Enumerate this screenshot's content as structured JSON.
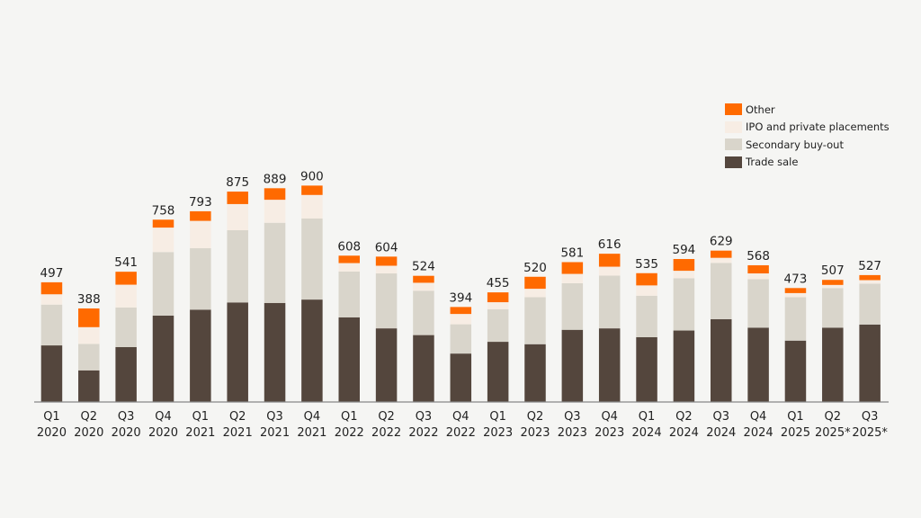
{
  "chart_data": {
    "type": "bar",
    "stacked": true,
    "categories": [
      "Q1 2020",
      "Q2 2020",
      "Q3 2020",
      "Q4 2020",
      "Q1 2021",
      "Q2 2021",
      "Q3 2021",
      "Q4 2021",
      "Q1 2022",
      "Q2 2022",
      "Q3 2022",
      "Q4 2022",
      "Q1 2023",
      "Q2 2023",
      "Q3 2023",
      "Q4 2023",
      "Q1 2024",
      "Q2 2024",
      "Q3 2024",
      "Q4 2024",
      "Q1 2025",
      "Q2 2025*",
      "Q3 2025*"
    ],
    "category_labels": [
      [
        "Q1",
        "2020"
      ],
      [
        "Q2",
        "2020"
      ],
      [
        "Q3",
        "2020"
      ],
      [
        "Q4",
        "2020"
      ],
      [
        "Q1",
        "2021"
      ],
      [
        "Q2",
        "2021"
      ],
      [
        "Q3",
        "2021"
      ],
      [
        "Q4",
        "2021"
      ],
      [
        "Q1",
        "2022"
      ],
      [
        "Q2",
        "2022"
      ],
      [
        "Q3",
        "2022"
      ],
      [
        "Q4",
        "2022"
      ],
      [
        "Q1",
        "2023"
      ],
      [
        "Q2",
        "2023"
      ],
      [
        "Q3",
        "2023"
      ],
      [
        "Q4",
        "2023"
      ],
      [
        "Q1",
        "2024"
      ],
      [
        "Q2",
        "2024"
      ],
      [
        "Q3",
        "2024"
      ],
      [
        "Q4",
        "2024"
      ],
      [
        "Q1",
        "2025"
      ],
      [
        "Q2",
        "2025*"
      ],
      [
        "Q3",
        "2025*"
      ]
    ],
    "totals": [
      497,
      388,
      541,
      758,
      793,
      875,
      889,
      900,
      608,
      604,
      524,
      394,
      455,
      520,
      581,
      616,
      535,
      594,
      629,
      568,
      473,
      507,
      527
    ],
    "series": [
      {
        "name": "Trade sale",
        "color": "#54463d",
        "values": [
          234,
          130,
          227,
          358,
          383,
          413,
          411,
          425,
          351,
          305,
          277,
          200,
          249,
          239,
          299,
          305,
          268,
          296,
          343,
          308,
          254,
          308,
          321
        ]
      },
      {
        "name": "Secondary buy-out",
        "color": "#d9d5cb",
        "values": [
          170,
          110,
          165,
          265,
          256,
          301,
          334,
          338,
          191,
          229,
          185,
          122,
          136,
          196,
          194,
          220,
          173,
          218,
          235,
          202,
          181,
          165,
          170
        ]
      },
      {
        "name": "IPO and private placements",
        "color": "#f7ede4",
        "values": [
          43,
          70,
          95,
          102,
          114,
          109,
          96,
          98,
          35,
          32,
          33,
          43,
          29,
          35,
          39,
          37,
          43,
          31,
          21,
          24,
          17,
          13,
          15
        ]
      },
      {
        "name": "Other",
        "color": "#ff6a00",
        "values": [
          50,
          78,
          54,
          33,
          40,
          52,
          48,
          39,
          31,
          38,
          29,
          29,
          41,
          50,
          49,
          54,
          51,
          49,
          30,
          34,
          21,
          21,
          21
        ]
      }
    ],
    "legend_order": [
      "Other",
      "IPO and private placements",
      "Secondary buy-out",
      "Trade sale"
    ],
    "legend_position": "top-right",
    "ylim": [
      0,
      900
    ],
    "grid": false,
    "title": "",
    "xlabel": "",
    "ylabel": ""
  }
}
